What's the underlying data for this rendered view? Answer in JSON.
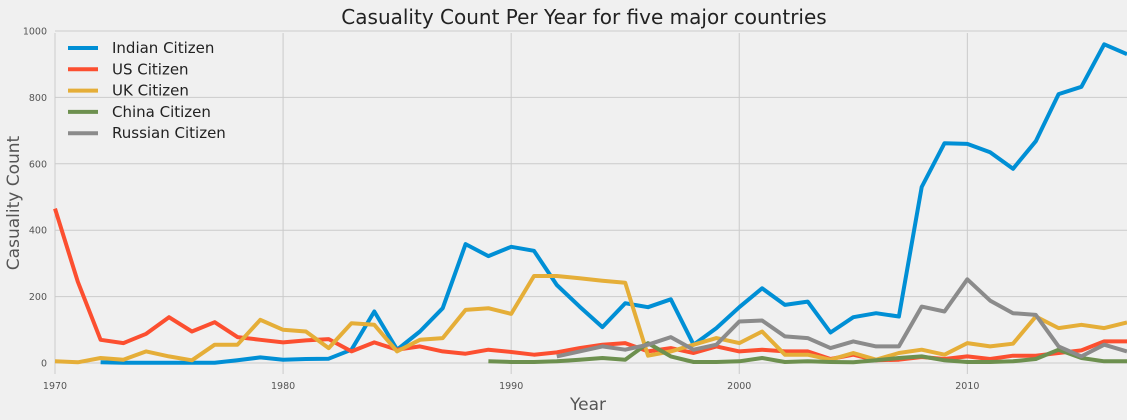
{
  "chart_data": {
    "type": "line",
    "title": "Casuality Count Per Year for five major countries",
    "xlabel": "Year",
    "ylabel": "Casuality Count",
    "xlim": [
      1970,
      2017
    ],
    "ylim": [
      0,
      1000
    ],
    "x_ticks": [
      1970,
      1980,
      1990,
      2000,
      2010
    ],
    "y_ticks": [
      0,
      200,
      400,
      600,
      800,
      1000
    ],
    "grid": true,
    "legend_position": "top-left",
    "series": [
      {
        "name": "Indian Citizen",
        "color": "#008fd5",
        "points": [
          [
            1972,
            2
          ],
          [
            1973,
            1
          ],
          [
            1974,
            1
          ],
          [
            1975,
            1
          ],
          [
            1976,
            1
          ],
          [
            1977,
            1
          ],
          [
            1978,
            8
          ],
          [
            1979,
            17
          ],
          [
            1980,
            10
          ],
          [
            1981,
            12
          ],
          [
            1982,
            13
          ],
          [
            1983,
            40
          ],
          [
            1984,
            155
          ],
          [
            1985,
            40
          ],
          [
            1986,
            95
          ],
          [
            1987,
            165
          ],
          [
            1988,
            358
          ],
          [
            1989,
            322
          ],
          [
            1990,
            350
          ],
          [
            1991,
            338
          ],
          [
            1992,
            235
          ],
          [
            1993,
            170
          ],
          [
            1994,
            108
          ],
          [
            1995,
            180
          ],
          [
            1996,
            168
          ],
          [
            1997,
            192
          ],
          [
            1998,
            55
          ],
          [
            1999,
            105
          ],
          [
            2000,
            168
          ],
          [
            2001,
            225
          ],
          [
            2002,
            175
          ],
          [
            2003,
            185
          ],
          [
            2004,
            92
          ],
          [
            2005,
            138
          ],
          [
            2006,
            150
          ],
          [
            2007,
            140
          ],
          [
            2008,
            530
          ],
          [
            2009,
            662
          ],
          [
            2010,
            660
          ],
          [
            2011,
            635
          ],
          [
            2012,
            585
          ],
          [
            2013,
            668
          ],
          [
            2014,
            810
          ],
          [
            2015,
            832
          ],
          [
            2016,
            960
          ],
          [
            2017,
            930
          ]
        ]
      },
      {
        "name": "US Citizen",
        "color": "#fc4f30",
        "points": [
          [
            1970,
            465
          ],
          [
            1971,
            245
          ],
          [
            1972,
            70
          ],
          [
            1973,
            60
          ],
          [
            1974,
            88
          ],
          [
            1975,
            138
          ],
          [
            1976,
            95
          ],
          [
            1977,
            123
          ],
          [
            1978,
            78
          ],
          [
            1979,
            70
          ],
          [
            1980,
            62
          ],
          [
            1981,
            68
          ],
          [
            1982,
            72
          ],
          [
            1983,
            35
          ],
          [
            1984,
            62
          ],
          [
            1985,
            40
          ],
          [
            1986,
            50
          ],
          [
            1987,
            35
          ],
          [
            1988,
            28
          ],
          [
            1989,
            40
          ],
          [
            1990,
            33
          ],
          [
            1991,
            25
          ],
          [
            1992,
            32
          ],
          [
            1993,
            45
          ],
          [
            1994,
            55
          ],
          [
            1995,
            60
          ],
          [
            1996,
            35
          ],
          [
            1997,
            45
          ],
          [
            1998,
            30
          ],
          [
            1999,
            50
          ],
          [
            2000,
            35
          ],
          [
            2001,
            40
          ],
          [
            2002,
            35
          ],
          [
            2003,
            35
          ],
          [
            2004,
            12
          ],
          [
            2005,
            25
          ],
          [
            2006,
            8
          ],
          [
            2007,
            10
          ],
          [
            2008,
            18
          ],
          [
            2009,
            12
          ],
          [
            2010,
            20
          ],
          [
            2011,
            12
          ],
          [
            2012,
            22
          ],
          [
            2013,
            22
          ],
          [
            2014,
            30
          ],
          [
            2015,
            38
          ],
          [
            2016,
            65
          ],
          [
            2017,
            65
          ]
        ]
      },
      {
        "name": "UK Citizen",
        "color": "#e5ae38",
        "points": [
          [
            1970,
            5
          ],
          [
            1971,
            2
          ],
          [
            1972,
            15
          ],
          [
            1973,
            10
          ],
          [
            1974,
            35
          ],
          [
            1975,
            20
          ],
          [
            1976,
            8
          ],
          [
            1977,
            55
          ],
          [
            1978,
            55
          ],
          [
            1979,
            130
          ],
          [
            1980,
            100
          ],
          [
            1981,
            95
          ],
          [
            1982,
            45
          ],
          [
            1983,
            120
          ],
          [
            1984,
            115
          ],
          [
            1985,
            35
          ],
          [
            1986,
            70
          ],
          [
            1987,
            75
          ],
          [
            1988,
            160
          ],
          [
            1989,
            165
          ],
          [
            1990,
            148
          ],
          [
            1991,
            262
          ],
          [
            1992,
            262
          ],
          [
            1993,
            255
          ],
          [
            1994,
            248
          ],
          [
            1995,
            242
          ],
          [
            1996,
            22
          ],
          [
            1997,
            35
          ],
          [
            1998,
            55
          ],
          [
            1999,
            75
          ],
          [
            2000,
            60
          ],
          [
            2001,
            95
          ],
          [
            2002,
            25
          ],
          [
            2003,
            25
          ],
          [
            2004,
            10
          ],
          [
            2005,
            30
          ],
          [
            2006,
            10
          ],
          [
            2007,
            30
          ],
          [
            2008,
            40
          ],
          [
            2009,
            25
          ],
          [
            2010,
            60
          ],
          [
            2011,
            50
          ],
          [
            2012,
            58
          ],
          [
            2013,
            140
          ],
          [
            2014,
            105
          ],
          [
            2015,
            115
          ],
          [
            2016,
            105
          ],
          [
            2017,
            122
          ]
        ]
      },
      {
        "name": "China Citizen",
        "color": "#6d904f",
        "points": [
          [
            1989,
            5
          ],
          [
            1990,
            3
          ],
          [
            1991,
            3
          ],
          [
            1992,
            5
          ],
          [
            1993,
            10
          ],
          [
            1994,
            15
          ],
          [
            1995,
            10
          ],
          [
            1996,
            60
          ],
          [
            1997,
            20
          ],
          [
            1998,
            3
          ],
          [
            1999,
            3
          ],
          [
            2000,
            5
          ],
          [
            2001,
            15
          ],
          [
            2002,
            3
          ],
          [
            2003,
            5
          ],
          [
            2004,
            3
          ],
          [
            2005,
            2
          ],
          [
            2006,
            8
          ],
          [
            2007,
            15
          ],
          [
            2008,
            20
          ],
          [
            2009,
            8
          ],
          [
            2010,
            3
          ],
          [
            2011,
            3
          ],
          [
            2012,
            5
          ],
          [
            2013,
            12
          ],
          [
            2014,
            40
          ],
          [
            2015,
            15
          ],
          [
            2016,
            5
          ],
          [
            2017,
            5
          ]
        ]
      },
      {
        "name": "Russian Citizen",
        "color": "#8b8b8b",
        "points": [
          [
            1992,
            20
          ],
          [
            1993,
            35
          ],
          [
            1994,
            50
          ],
          [
            1995,
            40
          ],
          [
            1996,
            55
          ],
          [
            1997,
            78
          ],
          [
            1998,
            40
          ],
          [
            1999,
            55
          ],
          [
            2000,
            125
          ],
          [
            2001,
            128
          ],
          [
            2002,
            80
          ],
          [
            2003,
            75
          ],
          [
            2004,
            45
          ],
          [
            2005,
            65
          ],
          [
            2006,
            50
          ],
          [
            2007,
            50
          ],
          [
            2008,
            170
          ],
          [
            2009,
            155
          ],
          [
            2010,
            252
          ],
          [
            2011,
            188
          ],
          [
            2012,
            150
          ],
          [
            2013,
            145
          ],
          [
            2014,
            50
          ],
          [
            2015,
            20
          ],
          [
            2016,
            55
          ],
          [
            2017,
            35
          ]
        ]
      }
    ]
  }
}
